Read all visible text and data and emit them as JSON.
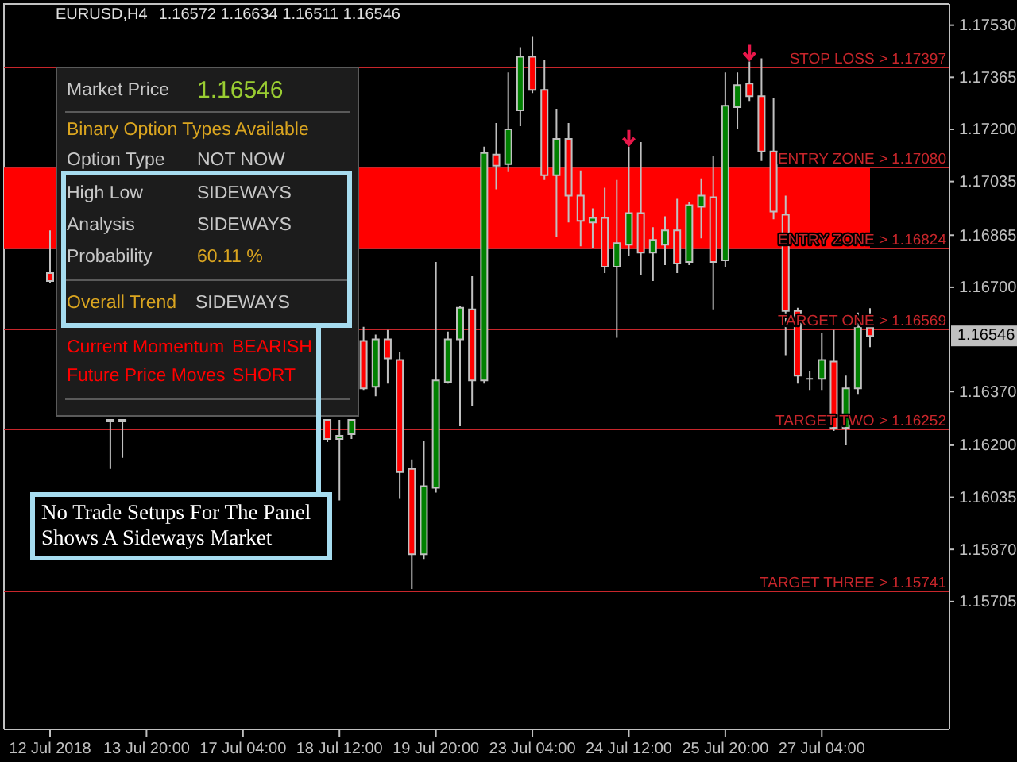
{
  "chart_data": {
    "type": "candlestick",
    "title": "EURUSD,H4",
    "subtitle": "1.16572 1.16634 1.16511 1.16546",
    "categories": [
      "12 Jul 2018",
      null,
      null,
      null,
      null,
      null,
      null,
      null,
      "13 Jul 20:00",
      null,
      null,
      null,
      null,
      null,
      null,
      null,
      "17 Jul 04:00",
      null,
      null,
      null,
      null,
      null,
      null,
      null,
      "18 Jul 12:00",
      null,
      null,
      null,
      null,
      null,
      null,
      null,
      "19 Jul 20:00",
      null,
      null,
      null,
      null,
      null,
      null,
      null,
      "23 Jul 04:00",
      null,
      null,
      null,
      null,
      null,
      null,
      null,
      "24 Jul 12:00",
      null,
      null,
      null,
      null,
      null,
      null,
      null,
      "25 Jul 20:00",
      null,
      null,
      null,
      null,
      null,
      null,
      null,
      "27 Jul 04:00",
      null,
      null,
      null,
      null
    ],
    "ohlc": [
      [
        1.16745,
        1.1688,
        1.16715,
        1.1672
      ],
      null,
      null,
      null,
      null,
      [
        1.1628,
        1.1628,
        1.16125,
        1.16275
      ],
      [
        1.16275,
        1.1628,
        1.1616,
        1.1628
      ],
      null,
      null,
      null,
      null,
      null,
      null,
      null,
      null,
      null,
      null,
      null,
      null,
      null,
      null,
      null,
      null,
      [
        1.1628,
        1.1628,
        1.1621,
        1.1622
      ],
      [
        1.1622,
        1.1628,
        1.16025,
        1.1623
      ],
      [
        1.16235,
        1.1628,
        1.1622,
        1.1628
      ],
      [
        1.1653,
        1.16575,
        1.16375,
        1.1638
      ],
      [
        1.16385,
        1.1655,
        1.16355,
        1.16535
      ],
      [
        1.16535,
        1.16565,
        1.16395,
        1.16475
      ],
      [
        1.1647,
        1.16495,
        1.1603,
        1.16115
      ],
      [
        1.16125,
        1.16155,
        1.15745,
        1.15855
      ],
      [
        1.15855,
        1.16215,
        1.1584,
        1.1607
      ],
      [
        1.16065,
        1.1678,
        1.1605,
        1.16405
      ],
      [
        1.164,
        1.1656,
        1.16395,
        1.16535
      ],
      [
        1.16535,
        1.1664,
        1.1626,
        1.16635
      ],
      [
        1.1663,
        1.16735,
        1.16325,
        1.16405
      ],
      [
        1.16405,
        1.17145,
        1.16395,
        1.17125
      ],
      [
        1.1712,
        1.1722,
        1.1701,
        1.17085
      ],
      [
        1.1709,
        1.1738,
        1.17065,
        1.172
      ],
      [
        1.1726,
        1.1746,
        1.1721,
        1.1743
      ],
      [
        1.1743,
        1.17495,
        1.17315,
        1.17325
      ],
      [
        1.17325,
        1.1742,
        1.1704,
        1.17055
      ],
      [
        1.17055,
        1.17265,
        1.1686,
        1.1717
      ],
      [
        1.1717,
        1.1722,
        1.16905,
        1.1699
      ],
      [
        1.1699,
        1.1707,
        1.1683,
        1.1691
      ],
      [
        1.16905,
        1.1695,
        1.16825,
        1.1692
      ],
      [
        1.1692,
        1.17015,
        1.16745,
        1.16765
      ],
      [
        1.16765,
        1.1704,
        1.1654,
        1.1684
      ],
      [
        1.16835,
        1.17145,
        1.168,
        1.16935
      ],
      [
        1.16935,
        1.1716,
        1.1674,
        1.1681
      ],
      [
        1.1681,
        1.1689,
        1.1672,
        1.1685
      ],
      [
        1.16835,
        1.16925,
        1.1677,
        1.1688
      ],
      [
        1.1688,
        1.1698,
        1.16745,
        1.16775
      ],
      [
        1.1678,
        1.1697,
        1.1677,
        1.1696
      ],
      [
        1.16955,
        1.17045,
        1.16855,
        1.1699
      ],
      [
        1.16985,
        1.17115,
        1.1663,
        1.1678
      ],
      [
        1.16785,
        1.1738,
        1.16765,
        1.17275
      ],
      [
        1.1727,
        1.1738,
        1.172,
        1.1734
      ],
      [
        1.17345,
        1.17415,
        1.1729,
        1.17305
      ],
      [
        1.17305,
        1.17425,
        1.171,
        1.1713
      ],
      [
        1.1713,
        1.173,
        1.16915,
        1.1694
      ],
      [
        1.1693,
        1.1699,
        1.16485,
        1.16625
      ],
      [
        1.16625,
        1.16635,
        1.16395,
        1.1642
      ],
      [
        1.1641,
        1.16435,
        1.16375,
        1.1641
      ],
      [
        1.1641,
        1.16555,
        1.16375,
        1.1647
      ],
      [
        1.16465,
        1.16565,
        1.16245,
        1.16255
      ],
      [
        1.16255,
        1.1642,
        1.162,
        1.1638
      ],
      [
        1.1638,
        1.1662,
        1.1636,
        1.16575
      ],
      [
        1.16572,
        1.16634,
        1.16511,
        1.16546
      ]
    ],
    "colors": [
      "#ff0000",
      null,
      null,
      null,
      null,
      "#ff0000",
      "#008000",
      null,
      null,
      null,
      null,
      null,
      null,
      null,
      null,
      null,
      null,
      null,
      null,
      null,
      null,
      null,
      null,
      "#ff0000",
      "#008000",
      "#008000",
      "#ff0000",
      "#008000",
      "#ff0000",
      "#ff0000",
      "#ff0000",
      "#008000",
      "#008000",
      "#008000",
      "#008000",
      "#ff0000",
      "#008000",
      "#ff0000",
      "#008000",
      "#008000",
      "#ff0000",
      "#ff0000",
      "#008000",
      "#ff0000",
      "#ff0000",
      "#008000",
      "#ff0000",
      "#008000",
      "#008000",
      "#ff0000",
      "#008000",
      "#008000",
      "#ff0000",
      "#008000",
      "#008000",
      "#ff0000",
      "#008000",
      "#008000",
      "#ff0000",
      "#ff0000",
      "#ff0000",
      "#ff0000",
      "#ff0000",
      "#c0c0c0",
      "#008000",
      "#ff0000",
      "#008000",
      "#008000",
      "#ff0000"
    ],
    "ylim": [
      1.153,
      1.17597
    ],
    "yticks": [
      {
        "value": 1.1753,
        "label": "1.17530"
      },
      1.17365,
      {
        "value": 1.172,
        "label": "1.17200"
      },
      1.17035,
      1.16865,
      {
        "value": 1.167,
        "label": "1.16700"
      },
      {
        "value": 1.1637,
        "label": "1.16370"
      },
      {
        "value": 1.162,
        "label": "1.16200"
      },
      1.16035,
      {
        "value": 1.1587,
        "label": "1.15870"
      },
      1.15705
    ],
    "bands": [
      {
        "axis": "y",
        "from": 1.16824,
        "to": 1.1708,
        "color": "#ff0000"
      }
    ],
    "ref_lines": [
      {
        "axis": "y",
        "value": 1.17397,
        "label": "STOP LOSS > 1.17397",
        "color": "#c8262b"
      },
      {
        "axis": "y",
        "value": 1.1708,
        "label": "ENTRY ZONE > 1.17080",
        "color": "#c8262b"
      },
      {
        "axis": "y",
        "value": 1.16824,
        "label": "ENTRY ZONE > 1.16824",
        "color": "#c8262b"
      },
      {
        "axis": "y",
        "value": 1.16569,
        "label": "TARGET ONE > 1.16569",
        "color": "#c8262b"
      },
      {
        "axis": "y",
        "value": 1.16252,
        "label": "TARGET TWO > 1.16252",
        "color": "#c8262b"
      },
      {
        "axis": "y",
        "value": 1.15741,
        "label": "TARGET THREE > 1.15741",
        "color": "#c8262b"
      }
    ],
    "annotations": [
      "Market Price",
      "1.16546",
      "Binary Option Types Available",
      "Option Type",
      "NOT NOW",
      "High Low",
      "SIDEWAYS",
      "Analysis",
      "SIDEWAYS",
      "Probability",
      "60.11 %",
      "Overall Trend",
      "SIDEWAYS",
      "Current Momentum",
      "BEARISH",
      "Future Price Moves",
      "SHORT",
      "No Trade Setups For The Panel Shows A Sideways Market",
      "1.16546"
    ]
  }
}
